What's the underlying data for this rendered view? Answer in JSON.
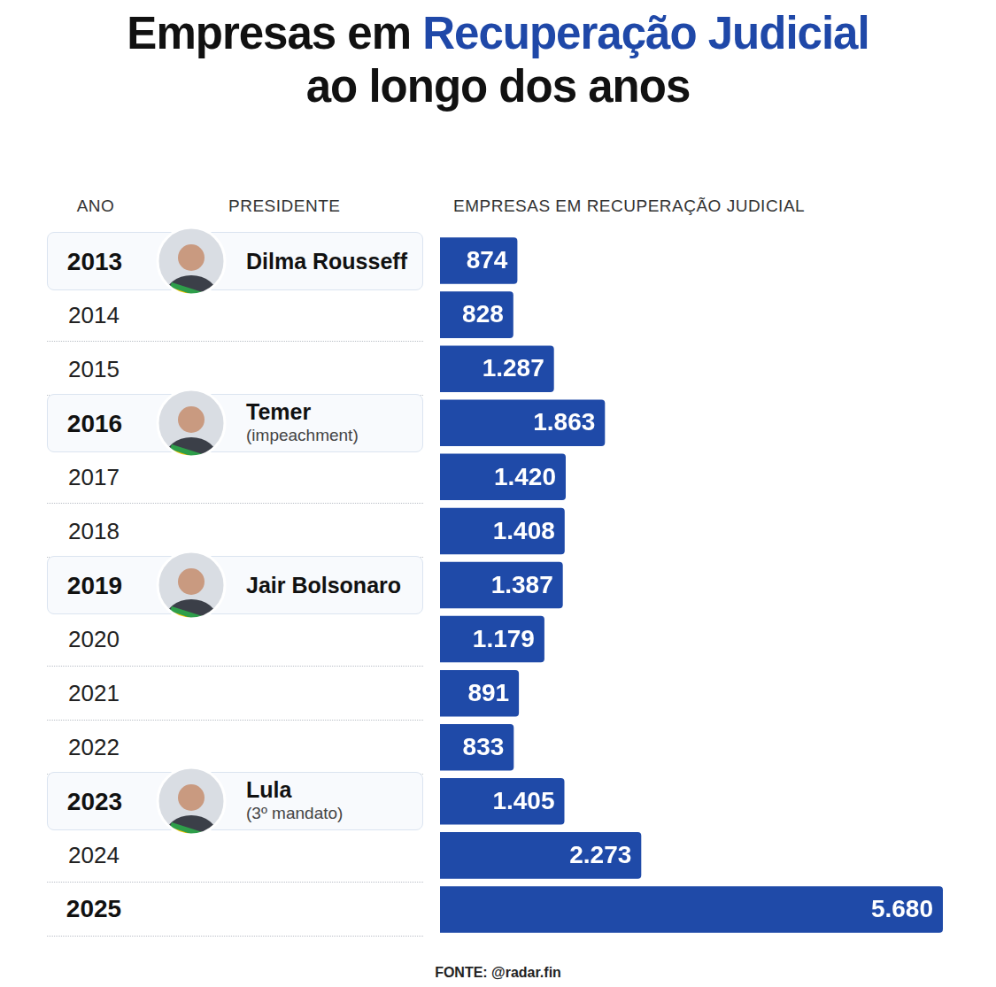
{
  "chart_data": {
    "type": "bar",
    "title": "Empresas em Recuperação Judicial ao longo dos anos",
    "title_highlight": "Recuperação Judicial",
    "column_headers": [
      "ANO",
      "PRESIDENTE",
      "EMPRESAS EM RECUPERAÇÃO JUDICIAL"
    ],
    "categories": [
      "2013",
      "2014",
      "2015",
      "2016",
      "2017",
      "2018",
      "2019",
      "2020",
      "2021",
      "2022",
      "2023",
      "2024",
      "2025"
    ],
    "values": [
      874,
      828,
      1287,
      1863,
      1420,
      1408,
      1387,
      1179,
      891,
      833,
      1405,
      2273,
      5680
    ],
    "value_labels": [
      "874",
      "828",
      "1.287",
      "1.863",
      "1.420",
      "1.408",
      "1.387",
      "1.179",
      "891",
      "833",
      "1.405",
      "2.273",
      "5.680"
    ],
    "presidents": [
      {
        "year": "2013",
        "name": "Dilma Rousseff"
      },
      {
        "year": "2016",
        "name": "Temer",
        "note": "(impeachment)"
      },
      {
        "year": "2019",
        "name": "Jair Bolsonaro"
      },
      {
        "year": "2023",
        "name": "Lula",
        "note": "(3º mandato)"
      }
    ],
    "color": "#1f4aa8",
    "orientation": "horizontal",
    "xlim": [
      0,
      6000
    ],
    "grid": false,
    "tick_labels": false,
    "data_labels": true,
    "source": "FONTE: @radar.fin"
  }
}
